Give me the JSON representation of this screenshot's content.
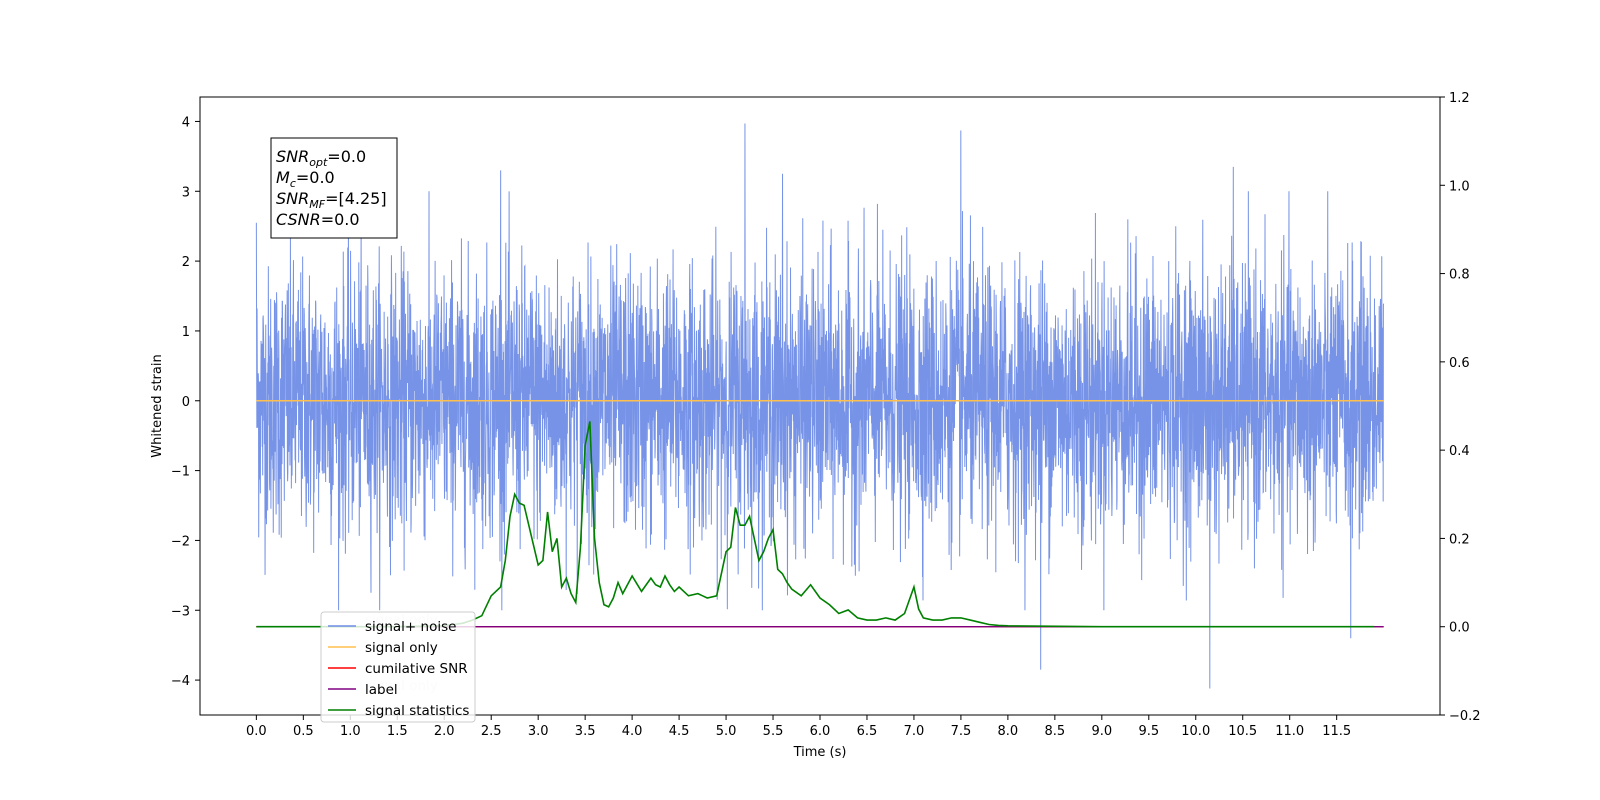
{
  "chart_data": {
    "type": "line",
    "xlabel": "Time (s)",
    "ylabel": "Whitened strain",
    "y2label": "",
    "xlim": [
      -0.6,
      12.6
    ],
    "ylim": [
      -4.5,
      4.35
    ],
    "y2lim": [
      -0.2,
      1.2
    ],
    "xticks": [
      "0.0",
      "0.5",
      "1.0",
      "1.5",
      "2.0",
      "2.5",
      "3.0",
      "3.5",
      "4.0",
      "4.5",
      "5.0",
      "5.5",
      "6.0",
      "6.5",
      "7.0",
      "7.5",
      "8.0",
      "8.5",
      "9.0",
      "9.5",
      "10.0",
      "10.5",
      "11.0",
      "11.5"
    ],
    "yticks": [
      "4",
      "3",
      "2",
      "1",
      "0",
      "−1",
      "−2",
      "−3",
      "−4"
    ],
    "y2ticks": [
      "1.2",
      "1.0",
      "0.8",
      "0.6",
      "0.4",
      "0.2",
      "0.0",
      "−0.2"
    ],
    "grid": false,
    "legend_position": "lower-left",
    "annotation": {
      "lines": [
        {
          "base": "SNR",
          "sub": "opt",
          "rest": "=0.0"
        },
        {
          "base": "M",
          "sub": "c",
          "rest": "=0.0"
        },
        {
          "base": "SNR",
          "sub": "MF",
          "rest": "=[4.25]"
        },
        {
          "base": "CSNR",
          "sub": "",
          "rest": "=0.0"
        }
      ]
    },
    "series": [
      {
        "name": "signal+ noise",
        "axis": "left",
        "color": "#6f8de6",
        "kind": "noise",
        "x_range": [
          0.0,
          12.0
        ],
        "spikes": [
          [
            0.0,
            2.55
          ],
          [
            2.6,
            3.3
          ],
          [
            5.2,
            3.97
          ],
          [
            5.6,
            3.25
          ],
          [
            7.5,
            3.87
          ],
          [
            8.35,
            -3.85
          ],
          [
            10.15,
            -4.12
          ],
          [
            10.4,
            3.35
          ],
          [
            11.65,
            -3.4
          ]
        ]
      },
      {
        "name": "signal only",
        "axis": "left",
        "color": "#ffc04d",
        "x": [
          0.0,
          12.0
        ],
        "y": [
          0.0,
          0.0
        ]
      },
      {
        "name": "cumilative SNR",
        "axis": "right",
        "color": "#ff0000",
        "x": [
          0.0,
          12.0
        ],
        "y": [
          0.0,
          0.0
        ]
      },
      {
        "name": "label",
        "axis": "right",
        "color": "#800080",
        "x": [
          0.0,
          12.0
        ],
        "y": [
          0.0,
          0.0
        ]
      },
      {
        "name": "signal statistics",
        "axis": "right",
        "color": "#008000",
        "x": [
          0.0,
          0.5,
          1.0,
          1.5,
          2.0,
          2.2,
          2.3,
          2.4,
          2.5,
          2.6,
          2.65,
          2.7,
          2.75,
          2.8,
          2.85,
          2.9,
          3.0,
          3.05,
          3.1,
          3.15,
          3.2,
          3.25,
          3.3,
          3.35,
          3.4,
          3.45,
          3.5,
          3.55,
          3.6,
          3.65,
          3.7,
          3.75,
          3.8,
          3.85,
          3.9,
          4.0,
          4.1,
          4.2,
          4.25,
          4.3,
          4.35,
          4.4,
          4.45,
          4.5,
          4.6,
          4.7,
          4.75,
          4.8,
          4.9,
          5.0,
          5.05,
          5.1,
          5.15,
          5.2,
          5.25,
          5.3,
          5.35,
          5.4,
          5.45,
          5.5,
          5.55,
          5.6,
          5.65,
          5.7,
          5.8,
          5.9,
          6.0,
          6.1,
          6.2,
          6.3,
          6.4,
          6.5,
          6.6,
          6.7,
          6.8,
          6.9,
          7.0,
          7.05,
          7.1,
          7.2,
          7.3,
          7.4,
          7.5,
          7.6,
          7.7,
          7.8,
          7.9,
          8.0,
          9.0,
          10.0,
          11.0,
          11.9
        ],
        "y": [
          0.0,
          0.0,
          0.0,
          0.0,
          0.002,
          0.008,
          0.015,
          0.025,
          0.07,
          0.09,
          0.15,
          0.25,
          0.3,
          0.28,
          0.275,
          0.23,
          0.14,
          0.15,
          0.26,
          0.17,
          0.2,
          0.09,
          0.11,
          0.075,
          0.055,
          0.18,
          0.41,
          0.465,
          0.2,
          0.1,
          0.05,
          0.045,
          0.065,
          0.1,
          0.075,
          0.115,
          0.08,
          0.11,
          0.095,
          0.09,
          0.115,
          0.095,
          0.08,
          0.09,
          0.07,
          0.075,
          0.07,
          0.065,
          0.07,
          0.17,
          0.18,
          0.27,
          0.23,
          0.23,
          0.25,
          0.2,
          0.15,
          0.17,
          0.2,
          0.22,
          0.13,
          0.12,
          0.1,
          0.085,
          0.07,
          0.095,
          0.065,
          0.05,
          0.03,
          0.038,
          0.02,
          0.015,
          0.015,
          0.02,
          0.015,
          0.03,
          0.09,
          0.04,
          0.02,
          0.015,
          0.015,
          0.02,
          0.02,
          0.015,
          0.01,
          0.005,
          0.003,
          0.002,
          0.0,
          0.0,
          0.0,
          0.0
        ]
      }
    ],
    "legend_overlap_texts": [
      "signal only",
      "signal only"
    ]
  }
}
